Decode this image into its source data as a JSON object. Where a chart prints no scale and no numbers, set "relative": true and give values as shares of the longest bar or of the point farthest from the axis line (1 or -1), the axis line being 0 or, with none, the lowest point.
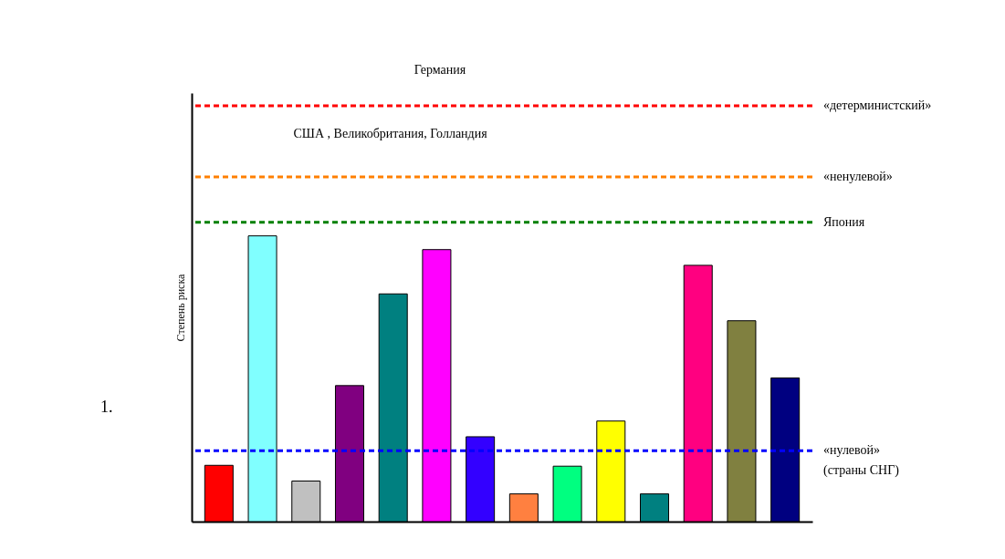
{
  "chart_data": {
    "type": "bar",
    "relative": true,
    "ylabel": "Степень риска",
    "categories": [
      null,
      null,
      null,
      null,
      null,
      null,
      null,
      null,
      null,
      null,
      null,
      null,
      null,
      null
    ],
    "values": [
      0.197,
      1,
      0.142,
      0.476,
      0.797,
      0.952,
      0.297,
      0.097,
      0.194,
      0.352,
      0.097,
      0.897,
      0.703,
      0.503
    ],
    "colors": [
      "#ff0000",
      "#80ffff",
      "#c0c0c0",
      "#800080",
      "#008080",
      "#ff00ff",
      "#3300ff",
      "#ff8040",
      "#00ff80",
      "#ffff00",
      "#008080",
      "#ff0080",
      "#808040",
      "#000080"
    ],
    "ref_lines": [
      {
        "axis": "y",
        "value": 1.455,
        "label": "«детерминистский»",
        "color": "#ff0000",
        "line_style": "dashed"
      },
      {
        "axis": "y",
        "value": 1.206,
        "label": "«ненулевой»",
        "color": "#ff8000",
        "line_style": "dashed"
      },
      {
        "axis": "y",
        "value": 1.048,
        "label": "Япония",
        "color": "#008000",
        "line_style": "dashed"
      },
      {
        "axis": "y",
        "value": 0.248,
        "label": "«нулевой»\n(страны СНГ)",
        "color": "#0000ff",
        "line_style": "dashed"
      }
    ],
    "annotations": [
      "Германия",
      "США , Великобритания, Голландия",
      "1."
    ]
  }
}
